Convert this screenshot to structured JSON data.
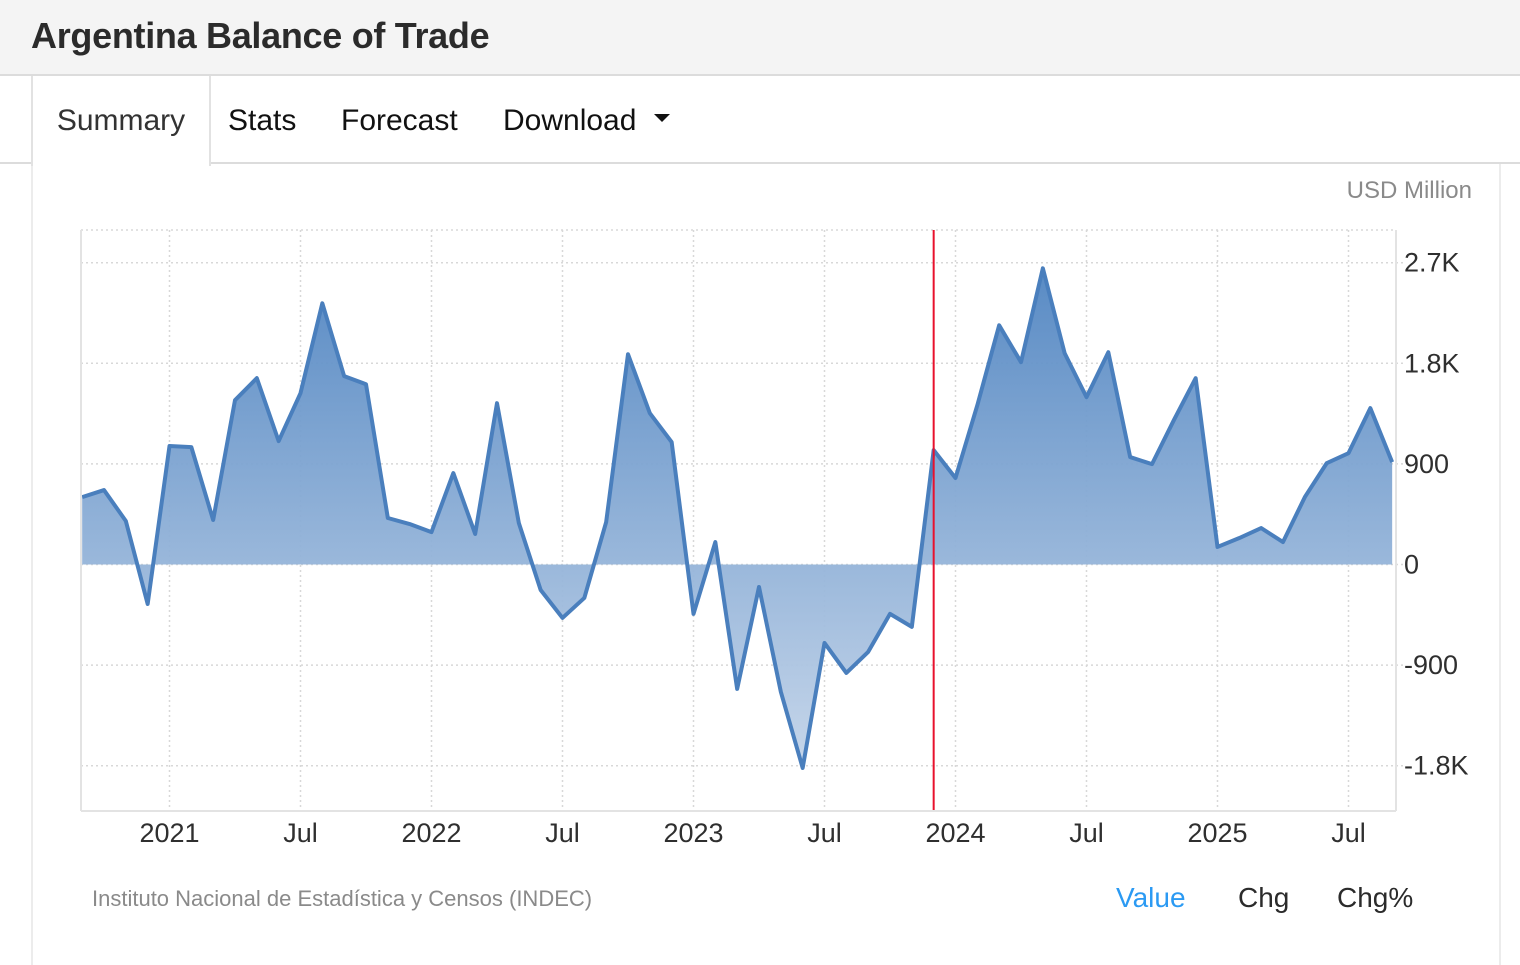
{
  "header": {
    "title": "Argentina Balance of Trade"
  },
  "tabs": [
    {
      "label": "Summary",
      "active": true
    },
    {
      "label": "Stats",
      "active": false
    },
    {
      "label": "Forecast",
      "active": false
    },
    {
      "label": "Download",
      "active": false,
      "icon": "caret-down-icon"
    }
  ],
  "unit_label": "USD Million",
  "source": "Instituto Nacional de Estadística y Censos (INDEC)",
  "legend": {
    "value": "Value",
    "chg": "Chg",
    "chgp": "Chg%",
    "active": "Value"
  },
  "colors": {
    "line": "#4a7fbd",
    "area_top": "#4f84c1",
    "area_bottom": "#c6d6ea",
    "marker": "#e8112d",
    "active_link": "#2b9af3"
  },
  "chart_data": {
    "type": "area",
    "title": "Argentina Balance of Trade",
    "ylabel": "USD Million",
    "xlabel": "",
    "ylim": [
      -2200,
      3000
    ],
    "yticks": [
      2700,
      1800,
      900,
      0,
      -900,
      -1800
    ],
    "ytick_labels": [
      "2.7K",
      "1.8K",
      "900",
      "0",
      "-900",
      "-1.8K"
    ],
    "xticks": [
      {
        "label": "2021",
        "date": "2021-01"
      },
      {
        "label": "Jul",
        "date": "2021-07"
      },
      {
        "label": "2022",
        "date": "2022-01"
      },
      {
        "label": "Jul",
        "date": "2022-07"
      },
      {
        "label": "2023",
        "date": "2023-01"
      },
      {
        "label": "Jul",
        "date": "2023-07"
      },
      {
        "label": "2024",
        "date": "2024-01"
      },
      {
        "label": "Jul",
        "date": "2024-07"
      },
      {
        "label": "2025",
        "date": "2025-01"
      },
      {
        "label": "Jul",
        "date": "2025-07"
      }
    ],
    "grid": true,
    "vertical_marker": "2023-12",
    "x": [
      "2020-09",
      "2020-10",
      "2020-11",
      "2020-12",
      "2021-01",
      "2021-02",
      "2021-03",
      "2021-04",
      "2021-05",
      "2021-06",
      "2021-07",
      "2021-08",
      "2021-09",
      "2021-10",
      "2021-11",
      "2021-12",
      "2022-01",
      "2022-02",
      "2022-03",
      "2022-04",
      "2022-05",
      "2022-06",
      "2022-07",
      "2022-08",
      "2022-09",
      "2022-10",
      "2022-11",
      "2022-12",
      "2023-01",
      "2023-02",
      "2023-03",
      "2023-04",
      "2023-05",
      "2023-06",
      "2023-07",
      "2023-08",
      "2023-09",
      "2023-10",
      "2023-11",
      "2023-12",
      "2024-01",
      "2024-02",
      "2024-03",
      "2024-04",
      "2024-05",
      "2024-06",
      "2024-07",
      "2024-08",
      "2024-09",
      "2024-10",
      "2024-11",
      "2024-12",
      "2025-01",
      "2025-02",
      "2025-03",
      "2025-04",
      "2025-05",
      "2025-06",
      "2025-07",
      "2025-08",
      "2025-09"
    ],
    "series": [
      {
        "name": "Balance of Trade",
        "values": [
          603,
          666,
          389,
          -353,
          1060,
          1050,
          398,
          1470,
          1667,
          1104,
          1533,
          2337,
          1685,
          1613,
          416,
          362,
          290,
          818,
          273,
          1443,
          371,
          -228,
          -478,
          -299,
          380,
          1881,
          1354,
          1095,
          -442,
          201,
          -1113,
          -201,
          -1139,
          -1820,
          -702,
          -970,
          -782,
          -442,
          -558,
          1023,
          774,
          1425,
          2140,
          1810,
          2650,
          1890,
          1497,
          1899,
          961,
          898,
          1291,
          1667,
          157,
          237,
          326,
          201,
          603,
          906,
          996,
          1399,
          916
        ]
      }
    ]
  }
}
